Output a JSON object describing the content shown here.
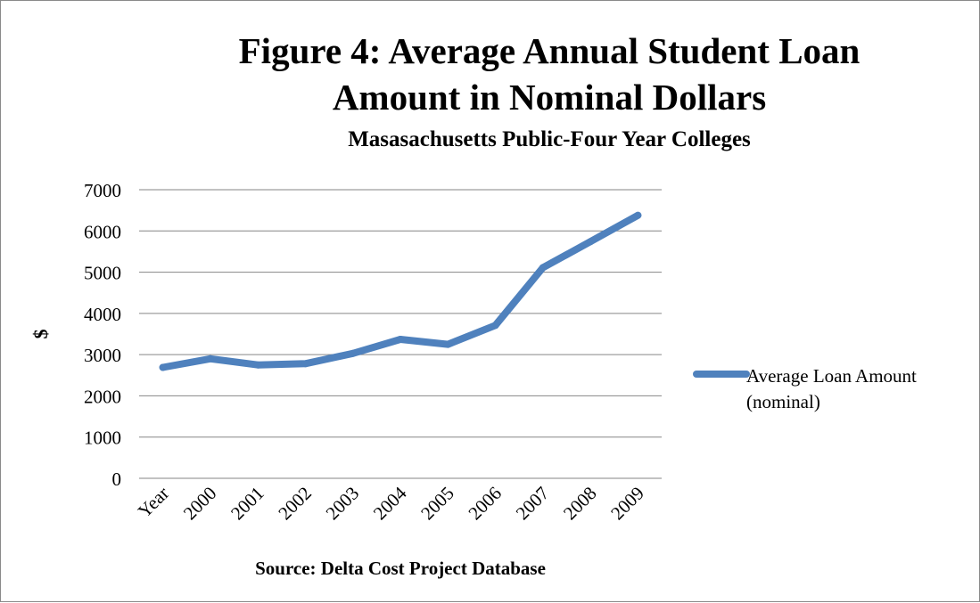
{
  "chart_data": {
    "type": "line",
    "title": "Figure 4: Average Annual Student Loan Amount in Nominal Dollars",
    "title_lines": [
      "Figure 4: Average Annual Student Loan",
      "Amount in Nominal Dollars"
    ],
    "subtitle": "Masasachusetts Public-Four Year Colleges",
    "xlabel": "Source: Delta Cost Project Database",
    "ylabel": "$",
    "categories": [
      "Year",
      "2000",
      "2001",
      "2002",
      "2003",
      "2004",
      "2005",
      "2006",
      "2007",
      "2008",
      "2009"
    ],
    "series": [
      {
        "name": "Average Loan Amount (nominal)",
        "name_lines": [
          "Average Loan Amount",
          "(nominal)"
        ],
        "color": "#4f81bd",
        "values": [
          2690,
          2900,
          2750,
          2780,
          3030,
          3370,
          3250,
          3710,
          5110,
          5740,
          6380
        ]
      }
    ],
    "ylim": [
      0,
      7000
    ],
    "yticks": [
      "0",
      "1000",
      "2000",
      "3000",
      "4000",
      "5000",
      "6000",
      "7000"
    ],
    "grid": true,
    "legend_position": "right",
    "colors": {
      "line": "#4f81bd",
      "grid": "#868686",
      "text": "#000000"
    }
  }
}
